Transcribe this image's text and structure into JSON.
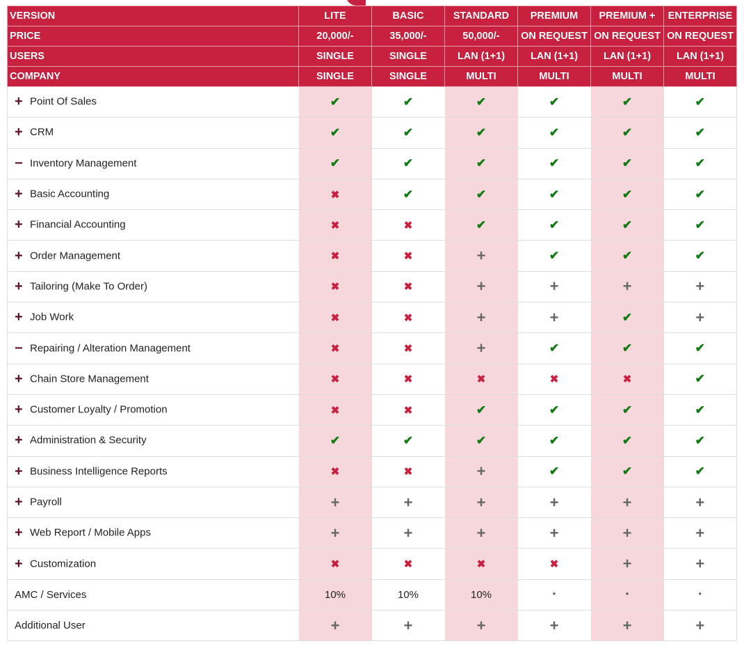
{
  "colors": {
    "header": "#c8203f",
    "pink_column": "#f5d7dc",
    "check": "#127a12",
    "cross": "#c8203f",
    "plus": "#666666"
  },
  "header_rows": [
    {
      "label": "VERSION",
      "values": [
        "LITE",
        "BASIC",
        "STANDARD",
        "PREMIUM",
        "PREMIUM +",
        "ENTERPRISE"
      ]
    },
    {
      "label": "PRICE",
      "values": [
        "20,000/-",
        "35,000/-",
        "50,000/-",
        "ON REQUEST",
        "ON REQUEST",
        "ON REQUEST"
      ]
    },
    {
      "label": "USERS",
      "values": [
        "SINGLE",
        "SINGLE",
        "LAN (1+1)",
        "LAN (1+1)",
        "LAN (1+1)",
        "LAN (1+1)"
      ]
    },
    {
      "label": "COMPANY",
      "values": [
        "SINGLE",
        "SINGLE",
        "MULTI",
        "MULTI",
        "MULTI",
        "MULTI"
      ]
    }
  ],
  "icons": {
    "check": "✔",
    "cross": "✖",
    "plus": "+",
    "expand": "+",
    "collapse": "−"
  },
  "features": [
    {
      "label": "Point Of Sales",
      "expander": "expand",
      "values": [
        "check",
        "check",
        "check",
        "check",
        "check",
        "check"
      ]
    },
    {
      "label": "CRM",
      "expander": "expand",
      "values": [
        "check",
        "check",
        "check",
        "check",
        "check",
        "check"
      ]
    },
    {
      "label": "Inventory Management",
      "expander": "collapse",
      "values": [
        "check",
        "check",
        "check",
        "check",
        "check",
        "check"
      ]
    },
    {
      "label": "Basic Accounting",
      "expander": "expand",
      "values": [
        "cross",
        "check",
        "check",
        "check",
        "check",
        "check"
      ]
    },
    {
      "label": "Financial Accounting",
      "expander": "expand",
      "values": [
        "cross",
        "cross",
        "check",
        "check",
        "check",
        "check"
      ]
    },
    {
      "label": "Order Management",
      "expander": "expand",
      "values": [
        "cross",
        "cross",
        "plus",
        "check",
        "check",
        "check"
      ]
    },
    {
      "label": "Tailoring (Make To Order)",
      "expander": "expand",
      "values": [
        "cross",
        "cross",
        "plus",
        "plus",
        "plus",
        "plus"
      ]
    },
    {
      "label": "Job Work",
      "expander": "expand",
      "values": [
        "cross",
        "cross",
        "plus",
        "plus",
        "check",
        "plus"
      ]
    },
    {
      "label": "Repairing / Alteration Management",
      "expander": "collapse",
      "values": [
        "cross",
        "cross",
        "plus",
        "check",
        "check",
        "check"
      ]
    },
    {
      "label": "Chain Store Management",
      "expander": "expand",
      "values": [
        "cross",
        "cross",
        "cross",
        "cross",
        "cross",
        "check"
      ]
    },
    {
      "label": "Customer Loyalty / Promotion",
      "expander": "expand",
      "values": [
        "cross",
        "cross",
        "check",
        "check",
        "check",
        "check"
      ]
    },
    {
      "label": "Administration & Security",
      "expander": "expand",
      "values": [
        "check",
        "check",
        "check",
        "check",
        "check",
        "check"
      ]
    },
    {
      "label": "Business Intelligence Reports",
      "expander": "expand",
      "values": [
        "cross",
        "cross",
        "plus",
        "check",
        "check",
        "check"
      ]
    },
    {
      "label": "Payroll",
      "expander": "expand",
      "values": [
        "plus",
        "plus",
        "plus",
        "plus",
        "plus",
        "plus"
      ]
    },
    {
      "label": "Web Report / Mobile Apps",
      "expander": "expand",
      "values": [
        "plus",
        "plus",
        "plus",
        "plus",
        "plus",
        "plus"
      ]
    },
    {
      "label": "Customization",
      "expander": "expand",
      "values": [
        "cross",
        "cross",
        "cross",
        "cross",
        "plus",
        "plus"
      ]
    },
    {
      "label": "AMC / Services",
      "expander": "",
      "values": [
        "10%",
        "10%",
        "10%",
        "*",
        "*",
        "*"
      ]
    },
    {
      "label": "Additional User",
      "expander": "",
      "values": [
        "plus",
        "plus",
        "plus",
        "plus",
        "plus",
        "plus"
      ]
    }
  ]
}
